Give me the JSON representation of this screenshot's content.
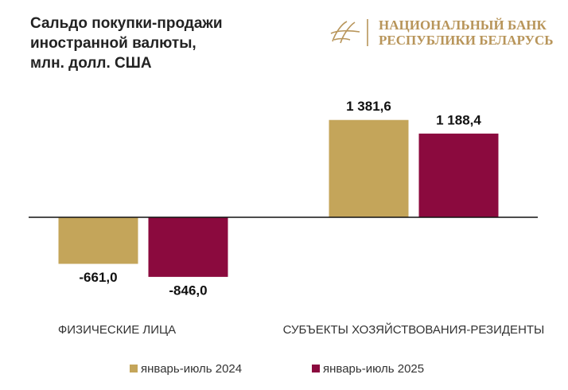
{
  "logo": {
    "lines": [
      "НАЦИОНАЛЬНЫЙ БАНК",
      "РЕСПУБЛИКИ БЕЛАРУСЬ"
    ]
  },
  "chart_data": {
    "type": "bar",
    "title": [
      "Сальдо покупки-продажи",
      "иностранной валюты,",
      "млн. долл. США"
    ],
    "categories": [
      "ФИЗИЧЕСКИЕ ЛИЦА",
      "СУБЪЕКТЫ ХОЗЯЙСТВОВАНИЯ-РЕЗИДЕНТЫ"
    ],
    "series": [
      {
        "name": "январь-июль 2024",
        "color": "#c4a55a",
        "values": [
          -661.0,
          1381.6
        ],
        "value_labels": [
          "-661,0",
          "1 381,6"
        ]
      },
      {
        "name": "январь-июль 2025",
        "color": "#8b0a3e",
        "values": [
          -846.0,
          1188.4
        ],
        "value_labels": [
          "-846,0",
          "1 188,4"
        ]
      }
    ],
    "legend": "bottom"
  }
}
